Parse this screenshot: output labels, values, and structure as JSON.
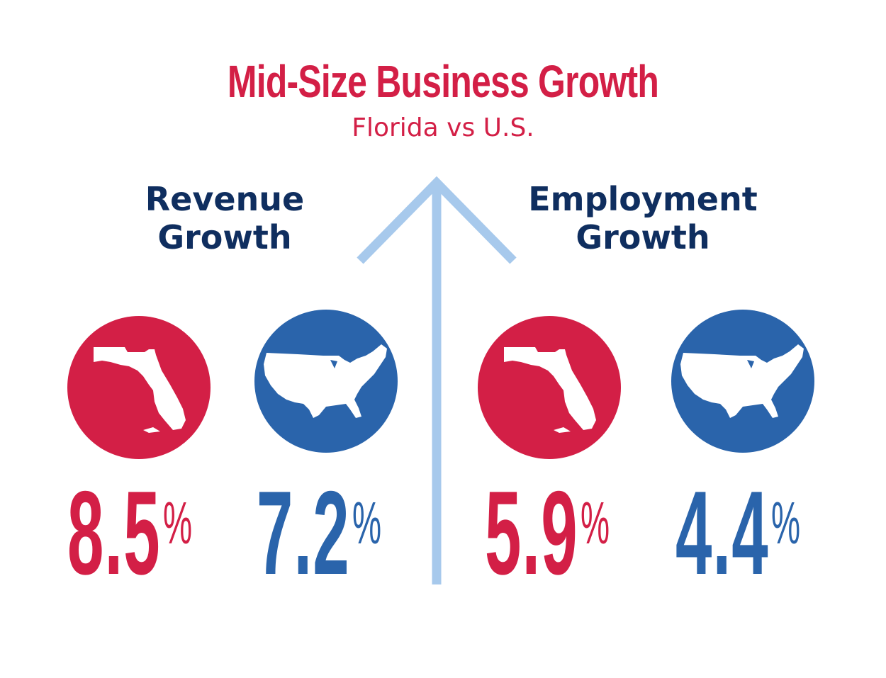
{
  "header": {
    "title": "Mid-Size Business Growth",
    "subtitle": "Florida vs U.S."
  },
  "colors": {
    "florida": "#d31f46",
    "us": "#2a64ab",
    "heading": "#0f2e5f",
    "arrow": "#a7c9ec"
  },
  "chart_data": {
    "type": "table",
    "title": "Mid-Size Business Growth",
    "subtitle": "Florida vs U.S.",
    "groups": [
      {
        "label_line1": "Revenue",
        "label_line2": "Growth",
        "entries": [
          {
            "region": "florida",
            "icon": "florida-map-icon",
            "value": 8.5,
            "display": "8.5",
            "unit": "%"
          },
          {
            "region": "us",
            "icon": "us-map-icon",
            "value": 7.2,
            "display": "7.2",
            "unit": "%"
          }
        ]
      },
      {
        "label_line1": "Employment",
        "label_line2": "Growth",
        "entries": [
          {
            "region": "florida",
            "icon": "florida-map-icon",
            "value": 5.9,
            "display": "5.9",
            "unit": "%"
          },
          {
            "region": "us",
            "icon": "us-map-icon",
            "value": 4.4,
            "display": "4.4",
            "unit": "%"
          }
        ]
      }
    ]
  }
}
